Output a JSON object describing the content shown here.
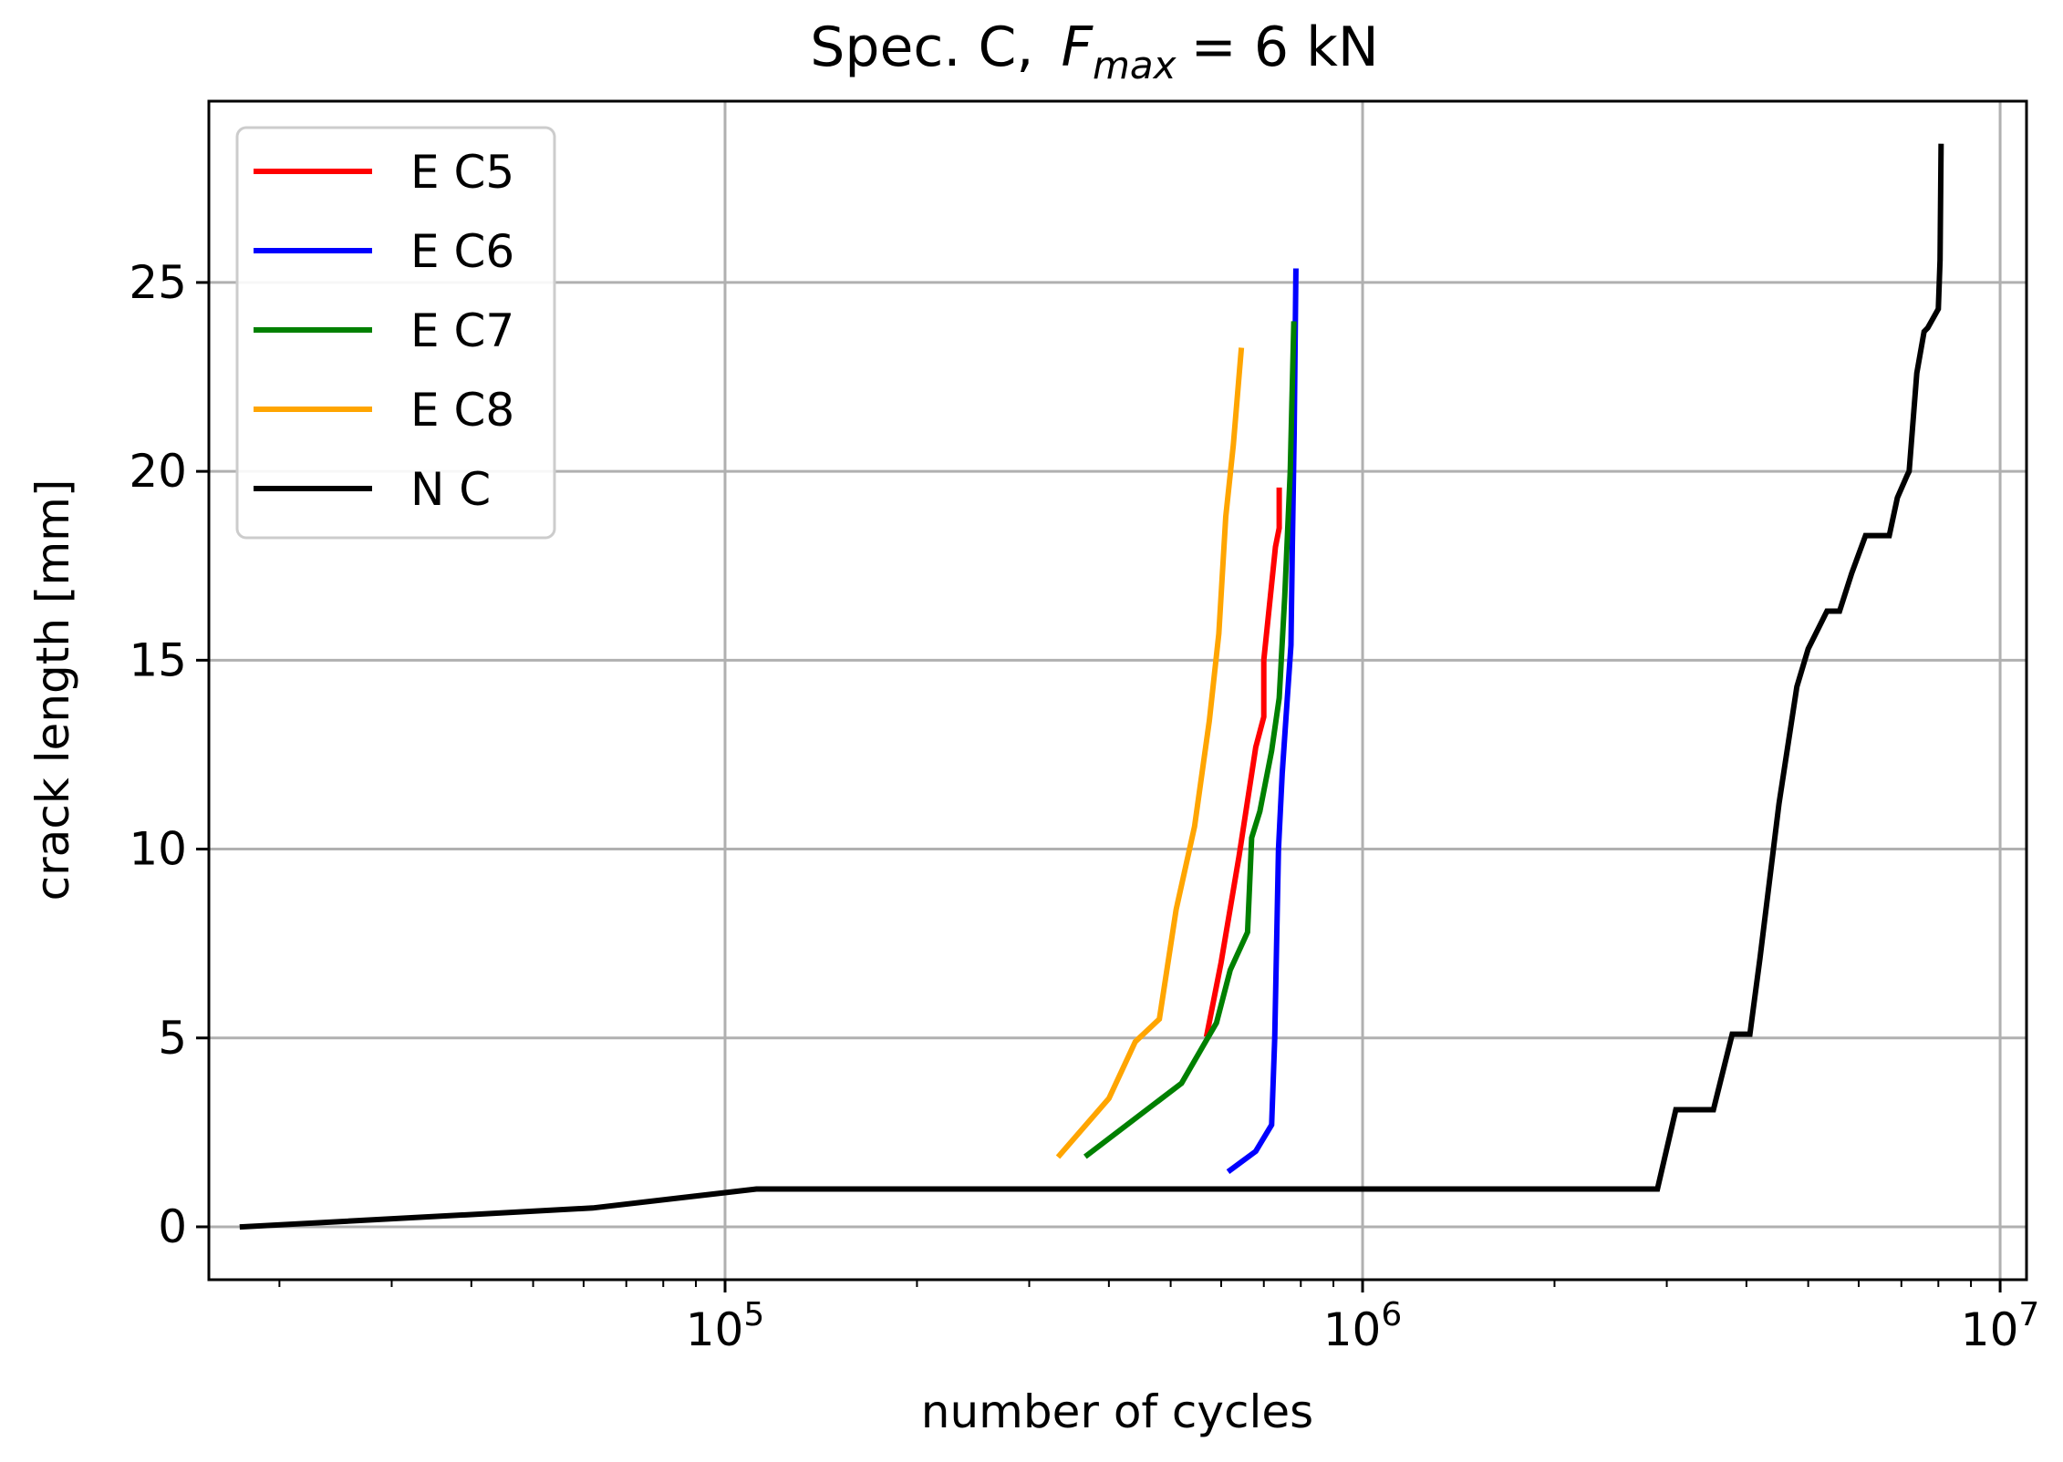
{
  "chart_data": {
    "type": "line",
    "title_prefix": "Spec. C,",
    "title_var": "F",
    "title_sub": "max",
    "title_suffix": "= 6 kN",
    "xlabel": "number of cycles",
    "ylabel": "crack length [mm]",
    "xscale": "log",
    "xlim": [
      15500,
      11000000
    ],
    "ylim": [
      -1.4,
      29.8
    ],
    "grid": true,
    "legend_position": "top-left",
    "x_ticks": [
      {
        "value": 100000,
        "base": "10",
        "exp": "5"
      },
      {
        "value": 1000000,
        "base": "10",
        "exp": "6"
      },
      {
        "value": 10000000,
        "base": "10",
        "exp": "7"
      }
    ],
    "y_ticks": [
      {
        "value": 0,
        "label": "0"
      },
      {
        "value": 5,
        "label": "5"
      },
      {
        "value": 10,
        "label": "10"
      },
      {
        "value": 15,
        "label": "15"
      },
      {
        "value": 20,
        "label": "20"
      },
      {
        "value": 25,
        "label": "25"
      }
    ],
    "series": [
      {
        "name": "E C5",
        "color": "#ff0000",
        "x": [
          570000,
          600000,
          640000,
          680000,
          700000,
          700000,
          730000,
          740000,
          740000
        ],
        "y": [
          5.1,
          7.0,
          9.8,
          12.7,
          13.5,
          15.0,
          18.0,
          18.5,
          19.5
        ]
      },
      {
        "name": "E C6",
        "color": "#0000ff",
        "x": [
          620000,
          680000,
          720000,
          728000,
          738000,
          748000,
          762000,
          772000,
          776000,
          781000,
          786000
        ],
        "y": [
          1.5,
          2.0,
          2.7,
          5.0,
          10.0,
          12.0,
          14.0,
          15.4,
          18.0,
          21.0,
          25.3
        ]
      },
      {
        "name": "E C7",
        "color": "#008000",
        "x": [
          370000,
          520000,
          590000,
          620000,
          660000,
          670000,
          690000,
          720000,
          740000,
          755000,
          770000,
          780000
        ],
        "y": [
          1.9,
          3.8,
          5.4,
          6.8,
          7.8,
          10.3,
          11.0,
          12.6,
          14.0,
          16.7,
          20.0,
          23.9
        ]
      },
      {
        "name": "E C8",
        "color": "#ffa500",
        "x": [
          335000,
          400000,
          440000,
          480000,
          510000,
          545000,
          575000,
          595000,
          610000,
          627000,
          645000
        ],
        "y": [
          1.9,
          3.4,
          4.9,
          5.5,
          8.4,
          10.6,
          13.4,
          15.7,
          18.8,
          20.7,
          23.2
        ]
      },
      {
        "name": "N C",
        "color": "#000000",
        "x": [
          17500,
          62000,
          112000,
          114000,
          2900000,
          3100000,
          3550000,
          3800000,
          4050000,
          4200000,
          4350000,
          4500000,
          4800000,
          5000000,
          5350000,
          5600000,
          5850000,
          6150000,
          6700000,
          6900000,
          7150000,
          7200000,
          7400000,
          7600000,
          7700000,
          8000000,
          8050000,
          8080000
        ],
        "y": [
          0.0,
          0.5,
          1.0,
          1.0,
          1.0,
          3.1,
          3.1,
          5.1,
          5.1,
          7.1,
          9.2,
          11.2,
          14.3,
          15.3,
          16.3,
          16.3,
          17.3,
          18.3,
          18.3,
          19.3,
          19.9,
          20.0,
          22.6,
          23.7,
          23.8,
          24.3,
          25.6,
          28.6
        ]
      }
    ]
  }
}
